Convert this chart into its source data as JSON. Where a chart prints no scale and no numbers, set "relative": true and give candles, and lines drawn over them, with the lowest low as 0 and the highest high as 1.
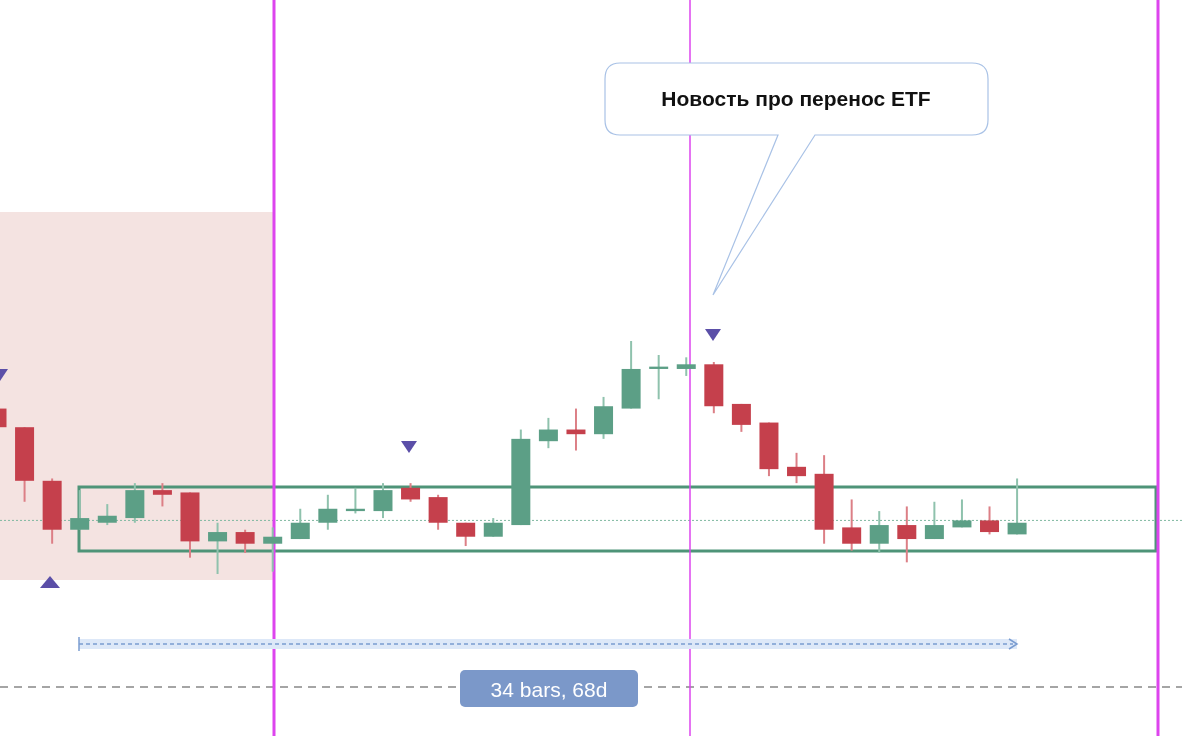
{
  "chart_data": {
    "type": "candlestick",
    "relative": true,
    "annotations": [
      "Новость про перенос ETF",
      "34 bars, 68d"
    ],
    "ref_lines": [
      {
        "axis": "y",
        "value": 0.23,
        "color": "#7fb8a0",
        "line_style": "dotted"
      }
    ],
    "categories": [
      null,
      null,
      null,
      null,
      null,
      null,
      null,
      null,
      null,
      null,
      null,
      null,
      null,
      null,
      null,
      null,
      null,
      null,
      null,
      null,
      null,
      null,
      null,
      null,
      null,
      null,
      null,
      null,
      null,
      null,
      null,
      null,
      null,
      null,
      null,
      null,
      null,
      null
    ],
    "ohlc": [
      [
        0.71,
        0.71,
        0.63,
        0.63
      ],
      [
        0.63,
        0.63,
        0.31,
        0.4
      ],
      [
        0.4,
        0.41,
        0.13,
        0.19
      ],
      [
        0.19,
        0.36,
        0.19,
        0.24
      ],
      [
        0.22,
        0.3,
        0.21,
        0.25
      ],
      [
        0.24,
        0.39,
        0.22,
        0.36
      ],
      [
        0.36,
        0.39,
        0.29,
        0.34
      ],
      [
        0.35,
        0.35,
        0.07,
        0.14
      ],
      [
        0.14,
        0.22,
        0,
        0.18
      ],
      [
        0.18,
        0.19,
        0.09,
        0.13
      ],
      [
        0.13,
        0.2,
        0.01,
        0.16
      ],
      [
        0.15,
        0.28,
        0.15,
        0.22
      ],
      [
        0.22,
        0.34,
        0.19,
        0.28
      ],
      [
        0.27,
        0.37,
        0.26,
        0.28
      ],
      [
        0.27,
        0.39,
        0.24,
        0.36
      ],
      [
        0.37,
        0.39,
        0.31,
        0.32
      ],
      [
        0.33,
        0.34,
        0.19,
        0.22
      ],
      [
        0.22,
        0.22,
        0.12,
        0.16
      ],
      [
        0.16,
        0.24,
        0.16,
        0.22
      ],
      [
        0.21,
        0.62,
        0.21,
        0.58
      ],
      [
        0.57,
        0.67,
        0.54,
        0.62
      ],
      [
        0.62,
        0.71,
        0.53,
        0.6
      ],
      [
        0.6,
        0.76,
        0.58,
        0.72
      ],
      [
        0.71,
        1,
        0.71,
        0.88
      ],
      [
        0.88,
        0.94,
        0.75,
        0.89
      ],
      [
        0.88,
        0.93,
        0.85,
        0.9
      ],
      [
        0.9,
        0.91,
        0.69,
        0.72
      ],
      [
        0.73,
        0.73,
        0.61,
        0.64
      ],
      [
        0.65,
        0.65,
        0.42,
        0.45
      ],
      [
        0.46,
        0.52,
        0.39,
        0.42
      ],
      [
        0.43,
        0.51,
        0.13,
        0.19
      ],
      [
        0.2,
        0.32,
        0.1,
        0.13
      ],
      [
        0.13,
        0.27,
        0.09,
        0.21
      ],
      [
        0.21,
        0.29,
        0.05,
        0.15
      ],
      [
        0.15,
        0.31,
        0.15,
        0.21
      ],
      [
        0.2,
        0.32,
        0.2,
        0.23
      ],
      [
        0.23,
        0.29,
        0.17,
        0.18
      ],
      [
        0.17,
        0.41,
        0.17,
        0.22
      ]
    ]
  }
}
